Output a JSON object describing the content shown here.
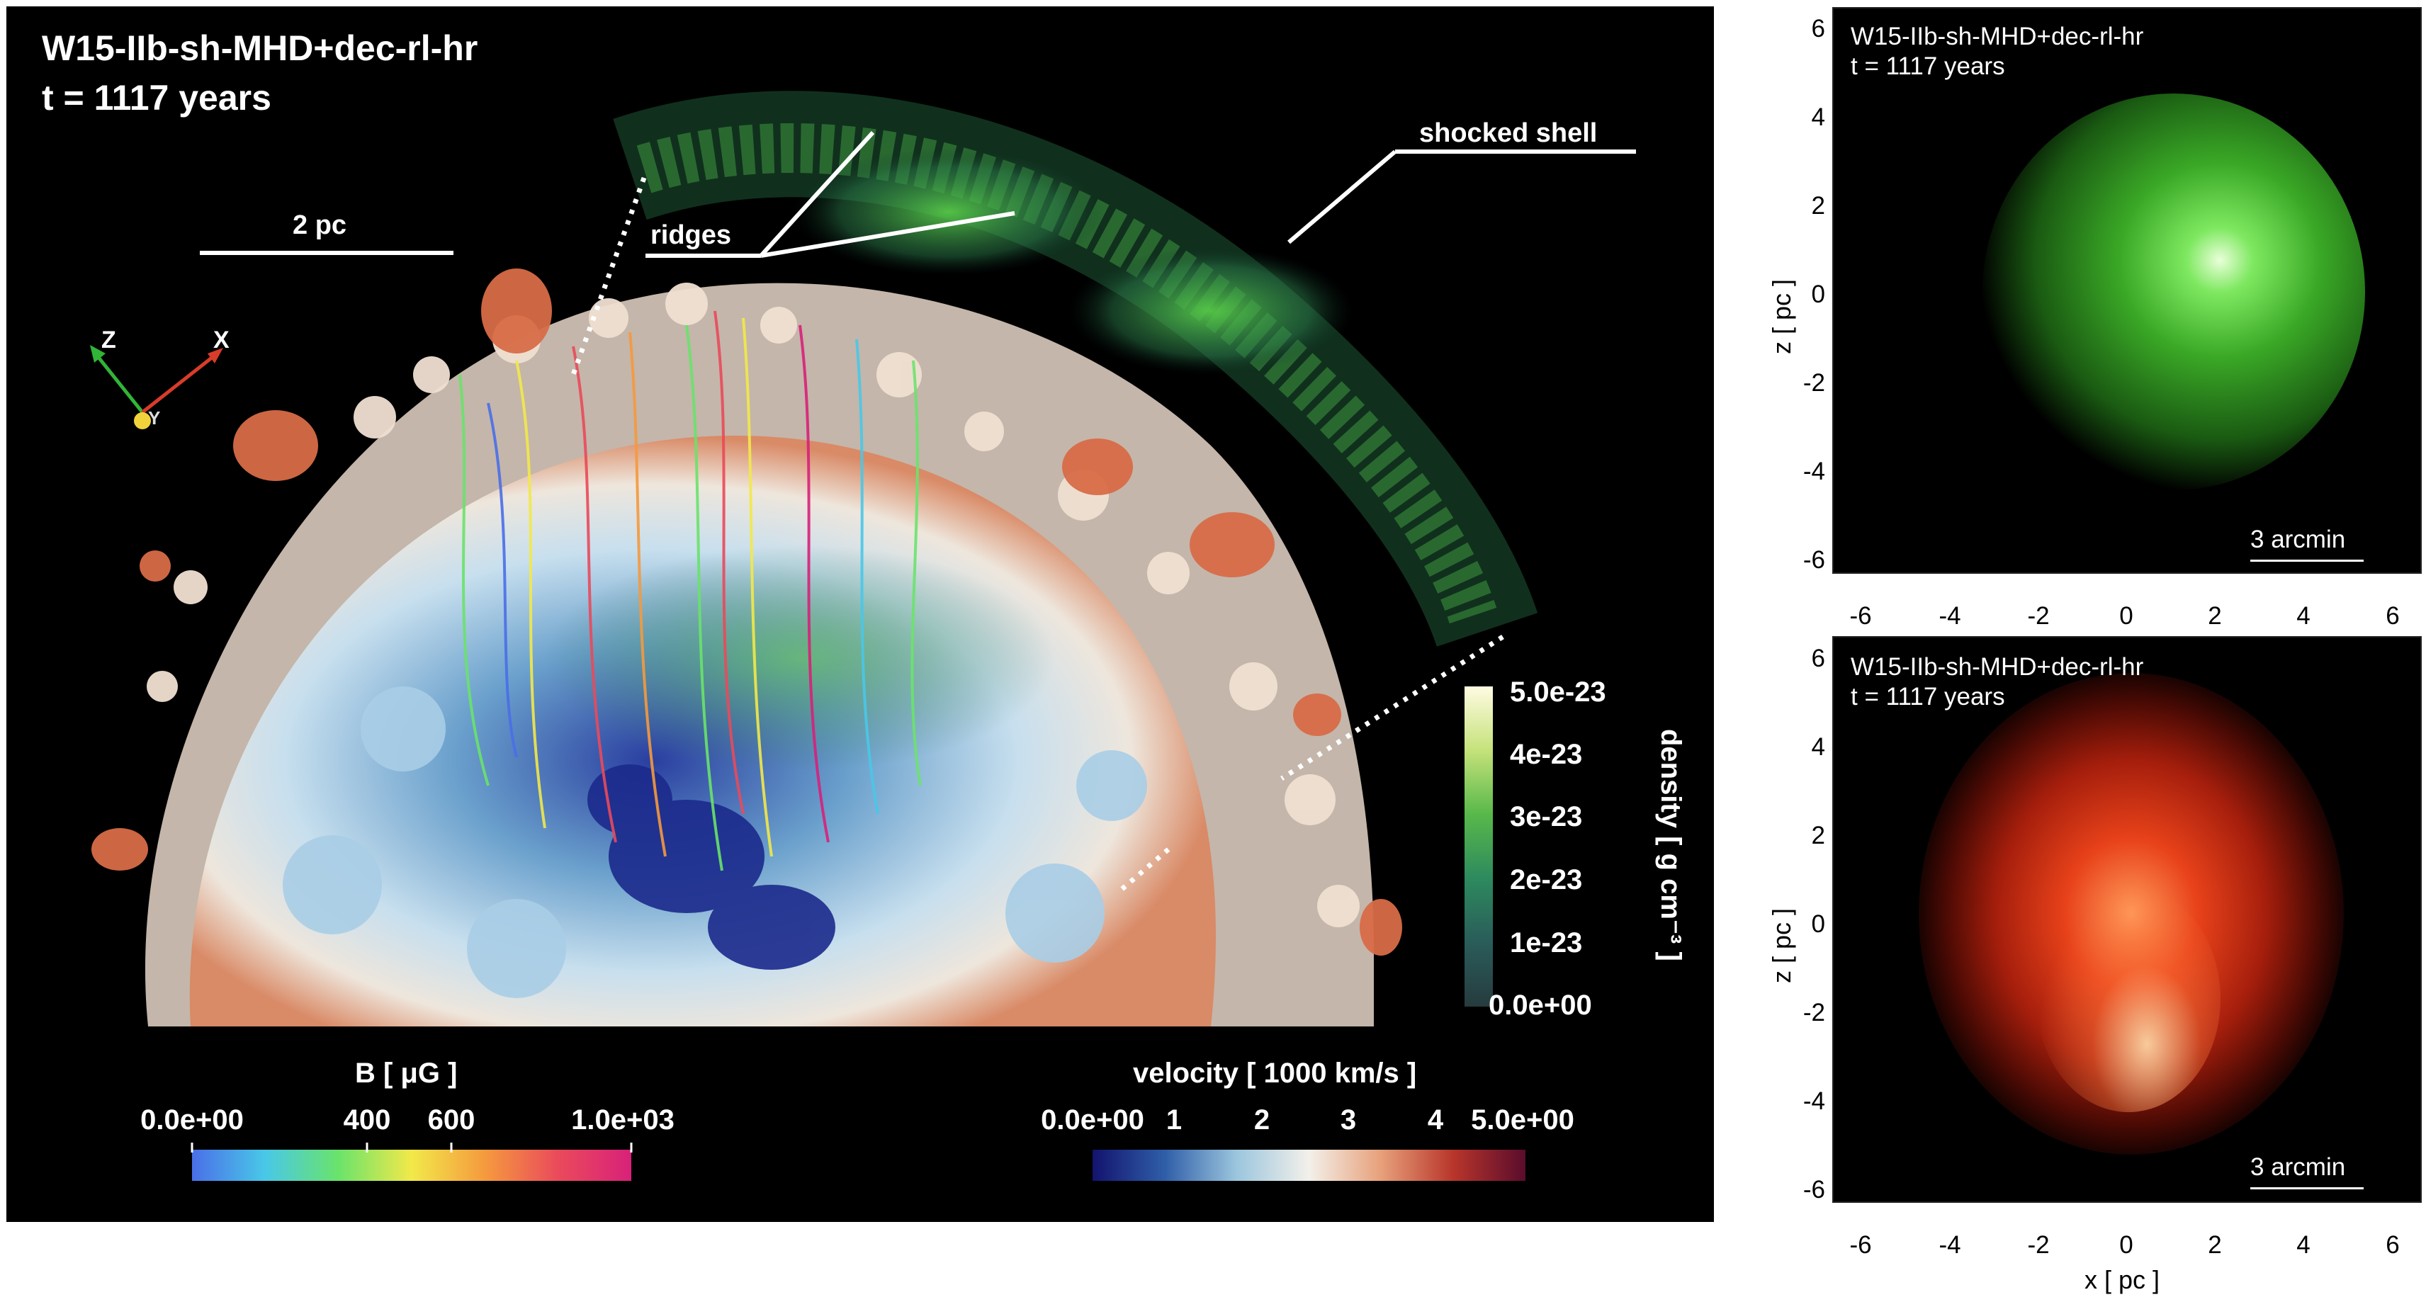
{
  "main": {
    "title": "W15-IIb-sh-MHD+dec-rl-hr",
    "time": "t = 1117 years",
    "scale_bar": "2 pc",
    "label_ridges": "ridges",
    "label_shell": "shocked shell",
    "axes": {
      "z": "Z",
      "x": "X",
      "y": "Y"
    },
    "colorbar_B": {
      "title": "B [ μG ]",
      "ticks": [
        "0.0e+00",
        "400",
        "600",
        "1.0e+03"
      ],
      "colors": [
        "#4a6fe8",
        "#49c8e8",
        "#6ae36b",
        "#f2e94a",
        "#f59a3e",
        "#ea4a5b",
        "#d8217a"
      ]
    },
    "colorbar_velocity": {
      "title": "velocity [ 1000 km/s ]",
      "ticks": [
        "0.0e+00",
        "1",
        "2",
        "3",
        "4",
        "5.0e+00"
      ],
      "colors": [
        "#13136e",
        "#2f5ea8",
        "#9cc6de",
        "#f3f0ea",
        "#e7a07a",
        "#b8352b",
        "#5a0c2c"
      ]
    },
    "colorbar_density": {
      "title": "density [ g cm⁻³ ]",
      "ticks": [
        "5.0e-23",
        "4e-23",
        "3e-23",
        "2e-23",
        "1e-23",
        "0.0e+00"
      ],
      "colors": [
        "#fffbe2",
        "#c5e27a",
        "#58b84a",
        "#2d8a5e",
        "#2a5c5a",
        "#263b3e"
      ]
    }
  },
  "panel_top": {
    "title": "W15-IIb-sh-MHD+dec-rl-hr",
    "time": "t = 1117 years",
    "scale": "3 arcmin",
    "tint": "#4cd13a"
  },
  "panel_bottom": {
    "title": "W15-IIb-sh-MHD+dec-rl-hr",
    "time": "t = 1117 years",
    "scale": "3 arcmin",
    "tint": "#ff4a1e"
  },
  "axes": {
    "yticks": [
      "6",
      "4",
      "2",
      "0",
      "-2",
      "-4",
      "-6"
    ],
    "xticks": [
      "-6",
      "-4",
      "-2",
      "0",
      "2",
      "4",
      "6"
    ],
    "ylabel": "z [ pc ]",
    "xlabel": "x [ pc ]"
  }
}
